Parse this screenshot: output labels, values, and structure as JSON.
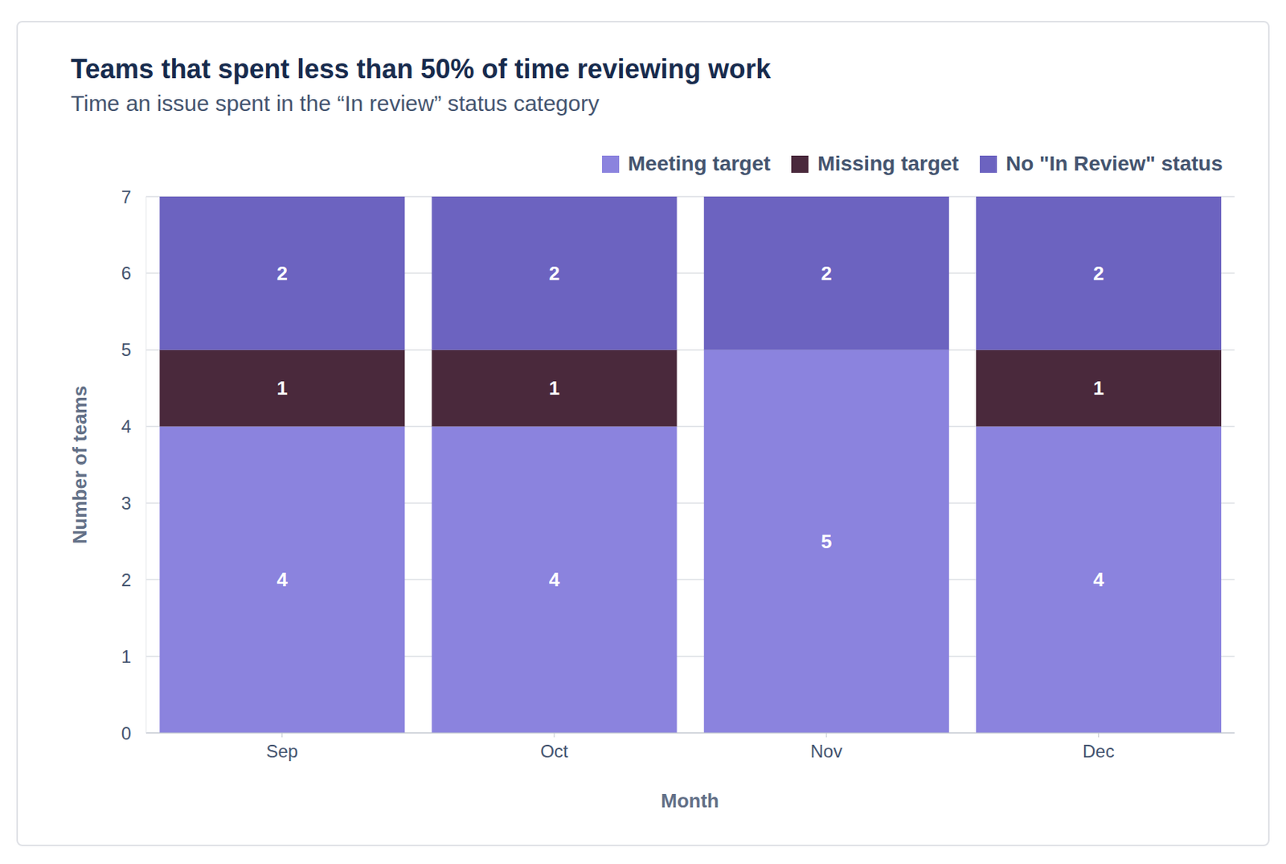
{
  "chart_data": {
    "type": "bar",
    "title": "Teams that spent less than 50% of time reviewing work",
    "subtitle": "Time an issue spent in the “In review” status category",
    "x_label": "Month",
    "y_label": "Number of teams",
    "categories": [
      "Sep",
      "Oct",
      "Nov",
      "Dec"
    ],
    "series": [
      {
        "name": "Meeting target",
        "color": "#8b83de",
        "values": [
          4,
          4,
          5,
          4
        ]
      },
      {
        "name": "Missing target",
        "color": "#4a293c",
        "values": [
          1,
          1,
          0,
          1
        ]
      },
      {
        "name": "No \"In Review\" status",
        "color": "#6c63c0",
        "values": [
          2,
          2,
          2,
          2
        ]
      }
    ],
    "ylim": [
      0,
      7
    ],
    "yticks": [
      0,
      1,
      2,
      3,
      4,
      5,
      6,
      7
    ],
    "grid": true,
    "stacked": true,
    "data_labels": true,
    "legend": "top-right"
  }
}
